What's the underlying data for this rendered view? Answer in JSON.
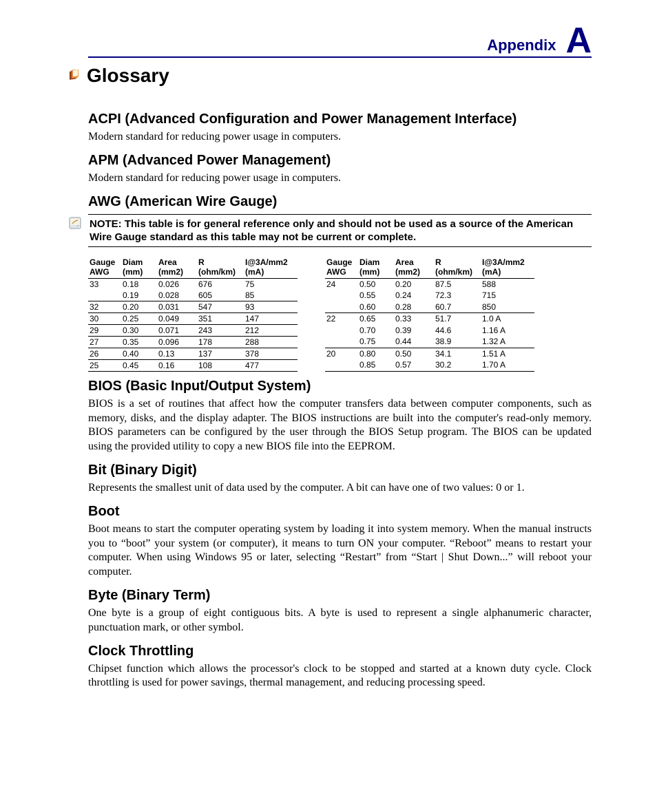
{
  "colors": {
    "accent": "#000080",
    "text": "#000000",
    "background": "#ffffff",
    "rule": "#000000"
  },
  "fonts": {
    "heading_family": "Arial, Helvetica, sans-serif",
    "body_family": "\"Times New Roman\", Times, serif",
    "appendix_label_size": 22,
    "appendix_letter_size": 52,
    "title_size": 28,
    "term_heading_size": 20,
    "body_size": 16,
    "note_size": 15,
    "table_size": 12
  },
  "header": {
    "label": "Appendix",
    "letter": "A"
  },
  "title": "Glossary",
  "note": "NOTE: This table is for general reference only and should not be used as a source of the American Wire Gauge standard as this table may not be current or complete.",
  "awg_tables": {
    "columns": [
      {
        "l1": "Gauge",
        "l2": "AWG"
      },
      {
        "l1": "Diam",
        "l2": "(mm)"
      },
      {
        "l1": "Area",
        "l2": "(mm2)"
      },
      {
        "l1": "R",
        "l2": "(ohm/km)"
      },
      {
        "l1": "I@3A/mm2",
        "l2": "(mA)"
      }
    ],
    "left_rows": [
      {
        "gauge": "33",
        "diam": "0.18",
        "area": "0.026",
        "r": "676",
        "i": "75",
        "sep": false
      },
      {
        "gauge": "",
        "diam": "0.19",
        "area": "0.028",
        "r": "605",
        "i": "85",
        "sep": true
      },
      {
        "gauge": "32",
        "diam": "0.20",
        "area": "0.031",
        "r": "547",
        "i": "93",
        "sep": true
      },
      {
        "gauge": "30",
        "diam": "0.25",
        "area": "0.049",
        "r": "351",
        "i": "147",
        "sep": true
      },
      {
        "gauge": "29",
        "diam": "0.30",
        "area": "0.071",
        "r": "243",
        "i": "212",
        "sep": true
      },
      {
        "gauge": "27",
        "diam": "0.35",
        "area": "0.096",
        "r": "178",
        "i": "288",
        "sep": true
      },
      {
        "gauge": "26",
        "diam": "0.40",
        "area": "0.13",
        "r": "137",
        "i": "378",
        "sep": true
      },
      {
        "gauge": "25",
        "diam": "0.45",
        "area": "0.16",
        "r": "108",
        "i": "477",
        "sep": true
      }
    ],
    "right_rows": [
      {
        "gauge": "24",
        "diam": "0.50",
        "area": "0.20",
        "r": "87.5",
        "i": "588",
        "sep": false
      },
      {
        "gauge": "",
        "diam": "0.55",
        "area": "0.24",
        "r": "72.3",
        "i": "715",
        "sep": false
      },
      {
        "gauge": "",
        "diam": "0.60",
        "area": "0.28",
        "r": "60.7",
        "i": "850",
        "sep": true
      },
      {
        "gauge": "22",
        "diam": "0.65",
        "area": "0.33",
        "r": "51.7",
        "i": "1.0 A",
        "sep": false
      },
      {
        "gauge": "",
        "diam": "0.70",
        "area": "0.39",
        "r": "44.6",
        "i": "1.16 A",
        "sep": false
      },
      {
        "gauge": "",
        "diam": "0.75",
        "area": "0.44",
        "r": "38.9",
        "i": "1.32 A",
        "sep": true
      },
      {
        "gauge": "20",
        "diam": "0.80",
        "area": "0.50",
        "r": "34.1",
        "i": "1.51 A",
        "sep": false
      },
      {
        "gauge": "",
        "diam": "0.85",
        "area": "0.57",
        "r": "30.2",
        "i": "1.70 A",
        "sep": true
      }
    ]
  },
  "terms": [
    {
      "heading": "ACPI (Advanced Configuration and Power Management Interface)",
      "body": "Modern standard for reducing power usage in computers."
    },
    {
      "heading": "APM (Advanced Power Management)",
      "body": "Modern standard for reducing power usage in computers."
    },
    {
      "heading": "AWG (American Wire Gauge)",
      "body": ""
    },
    {
      "heading": "BIOS (Basic Input/Output System)",
      "body": "BIOS is a set of routines that affect how the computer transfers data between computer components, such as memory, disks, and the display adapter. The BIOS instructions are built into the computer's read-only memory. BIOS parameters can be configured by the user through the BIOS Setup program. The BIOS can be updated using the provided utility to copy a new BIOS file into the EEPROM."
    },
    {
      "heading": "Bit (Binary Digit)",
      "body": "Represents the smallest unit of data used by the computer. A bit can have one of two values: 0 or 1."
    },
    {
      "heading": "Boot",
      "body": "Boot means to start the computer operating system by loading it into system memory. When the manual instructs you to “boot” your system (or computer), it means to turn ON your computer. “Reboot” means to restart your computer. When using Windows 95 or later, selecting “Restart” from “Start | Shut Down...” will reboot your computer."
    },
    {
      "heading": "Byte (Binary Term)",
      "body": "One byte is a group of eight contiguous bits. A byte is used to represent a single alphanumeric character, punctuation mark, or other symbol."
    },
    {
      "heading": "Clock Throttling",
      "body": "Chipset function which allows the processor's clock to be stopped and started at a known duty cycle. Clock throttling is used for power savings, thermal management, and reducing processing speed."
    }
  ]
}
